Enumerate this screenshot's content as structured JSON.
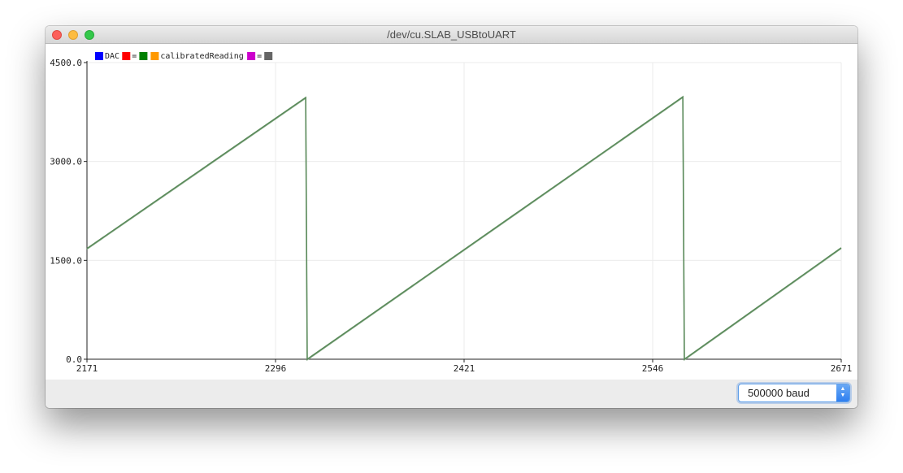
{
  "window": {
    "title": "/dev/cu.SLAB_USBtoUART"
  },
  "chart_data": {
    "type": "line",
    "x_ticks": [
      "2171",
      "2296",
      "2421",
      "2546",
      "2671"
    ],
    "y_ticks": [
      "0.0",
      "1500.0",
      "3000.0",
      "4500.0"
    ],
    "xlim": [
      2171,
      2671
    ],
    "ylim": [
      0,
      4500
    ],
    "grid": true,
    "legend_position": "top-left",
    "legend": [
      {
        "label": "DAC",
        "color": "#0000ff"
      },
      {
        "label": "=",
        "color": "#ff0000"
      },
      {
        "label": "",
        "color": "#008000"
      },
      {
        "label": "calibratedReading",
        "color": "#ff9900"
      },
      {
        "label": "=",
        "color": "#cc00cc"
      },
      {
        "label": "",
        "color": "#666666"
      }
    ],
    "series": [
      {
        "color": "#5a8a5a",
        "x": [
          2171,
          2316,
          2317,
          2566,
          2567,
          2671
        ],
        "y": [
          1680,
          3970,
          0,
          3980,
          0,
          1690
        ]
      }
    ]
  },
  "baud": {
    "selected": "500000 baud"
  }
}
